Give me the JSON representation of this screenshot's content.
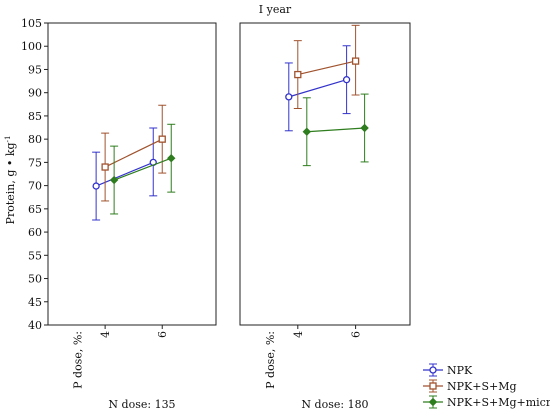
{
  "chart_data": {
    "type": "line",
    "title": "I year",
    "ylabel": "Protein, g • kg",
    "ylabel_sup": "-1",
    "ylim": [
      40,
      105
    ],
    "yticks": [
      40,
      45,
      50,
      55,
      60,
      65,
      70,
      75,
      80,
      85,
      90,
      95,
      100,
      105
    ],
    "x": [
      "4",
      "6"
    ],
    "x_prefix_label": "P dose, %:",
    "grid": false,
    "legend_position": "bottom-right",
    "panels": [
      {
        "label": "N dose: 135",
        "series": [
          {
            "name": "NPK",
            "color": "#3333cc",
            "marker": "circle",
            "values": [
              69.9,
              75.0
            ],
            "lower": [
              62.6,
              67.8
            ],
            "upper": [
              77.2,
              82.4
            ]
          },
          {
            "name": "NPK+S+Mg",
            "color": "#a0522d",
            "marker": "square",
            "values": [
              74.0,
              80.0
            ],
            "lower": [
              66.7,
              72.7
            ],
            "upper": [
              81.3,
              87.3
            ]
          },
          {
            "name": "NPK+S+Mg+micro",
            "color": "#2e7d1e",
            "marker": "diamond",
            "values": [
              71.2,
              75.9
            ],
            "lower": [
              63.9,
              68.6
            ],
            "upper": [
              78.5,
              83.2
            ]
          }
        ]
      },
      {
        "label": "N dose: 180",
        "series": [
          {
            "name": "NPK",
            "color": "#3333cc",
            "marker": "circle",
            "values": [
              89.1,
              92.8
            ],
            "lower": [
              81.8,
              85.5
            ],
            "upper": [
              96.4,
              100.1
            ]
          },
          {
            "name": "NPK+S+Mg",
            "color": "#a0522d",
            "marker": "square",
            "values": [
              93.9,
              96.8
            ],
            "lower": [
              86.6,
              89.5
            ],
            "upper": [
              101.2,
              104.5
            ]
          },
          {
            "name": "NPK+S+Mg+micro",
            "color": "#2e7d1e",
            "marker": "diamond",
            "values": [
              81.6,
              82.4
            ],
            "lower": [
              74.3,
              75.1
            ],
            "upper": [
              88.9,
              89.7
            ]
          }
        ]
      }
    ],
    "legend": [
      "NPK",
      "NPK+S+Mg",
      "NPK+S+Mg+micro"
    ]
  }
}
